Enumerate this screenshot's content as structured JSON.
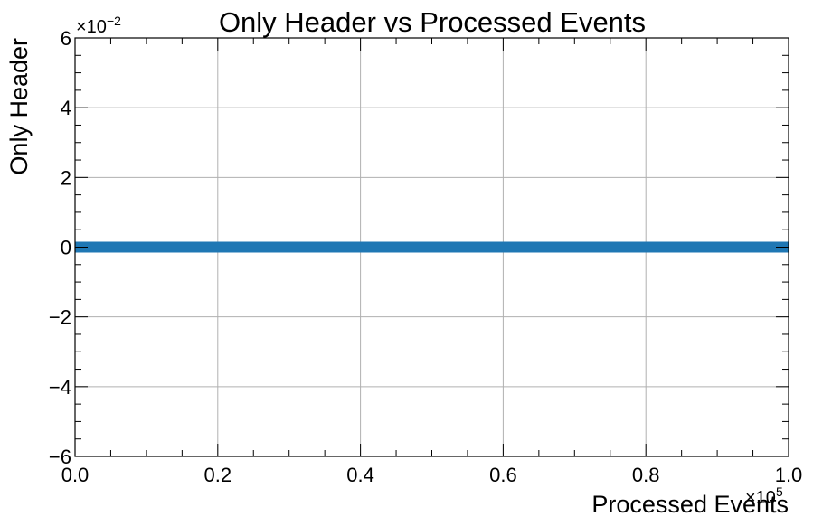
{
  "chart_data": {
    "type": "line",
    "title": "Only Header vs Processed Events",
    "xlabel": "Processed Events",
    "ylabel": "Only Header",
    "xlim": [
      0.0,
      100000
    ],
    "ylim": [
      -0.06,
      0.06
    ],
    "x_multiplier_base": "×10",
    "x_multiplier_exp": "5",
    "y_multiplier_base": "×10",
    "y_multiplier_exp": "−2",
    "xticks": [
      {
        "value": 0,
        "label": "0.0"
      },
      {
        "value": 20000,
        "label": "0.2"
      },
      {
        "value": 40000,
        "label": "0.4"
      },
      {
        "value": 60000,
        "label": "0.6"
      },
      {
        "value": 80000,
        "label": "0.8"
      },
      {
        "value": 100000,
        "label": "1.0"
      }
    ],
    "yticks": [
      {
        "value": -0.06,
        "label": "−6"
      },
      {
        "value": -0.04,
        "label": "−4"
      },
      {
        "value": -0.02,
        "label": "−2"
      },
      {
        "value": 0,
        "label": "0"
      },
      {
        "value": 0.02,
        "label": "2"
      },
      {
        "value": 0.04,
        "label": "4"
      },
      {
        "value": 0.06,
        "label": "6"
      }
    ],
    "grid": true,
    "series": [
      {
        "x": [
          0,
          100000
        ],
        "y": [
          0,
          0
        ],
        "color": "#1f77b4"
      }
    ]
  }
}
